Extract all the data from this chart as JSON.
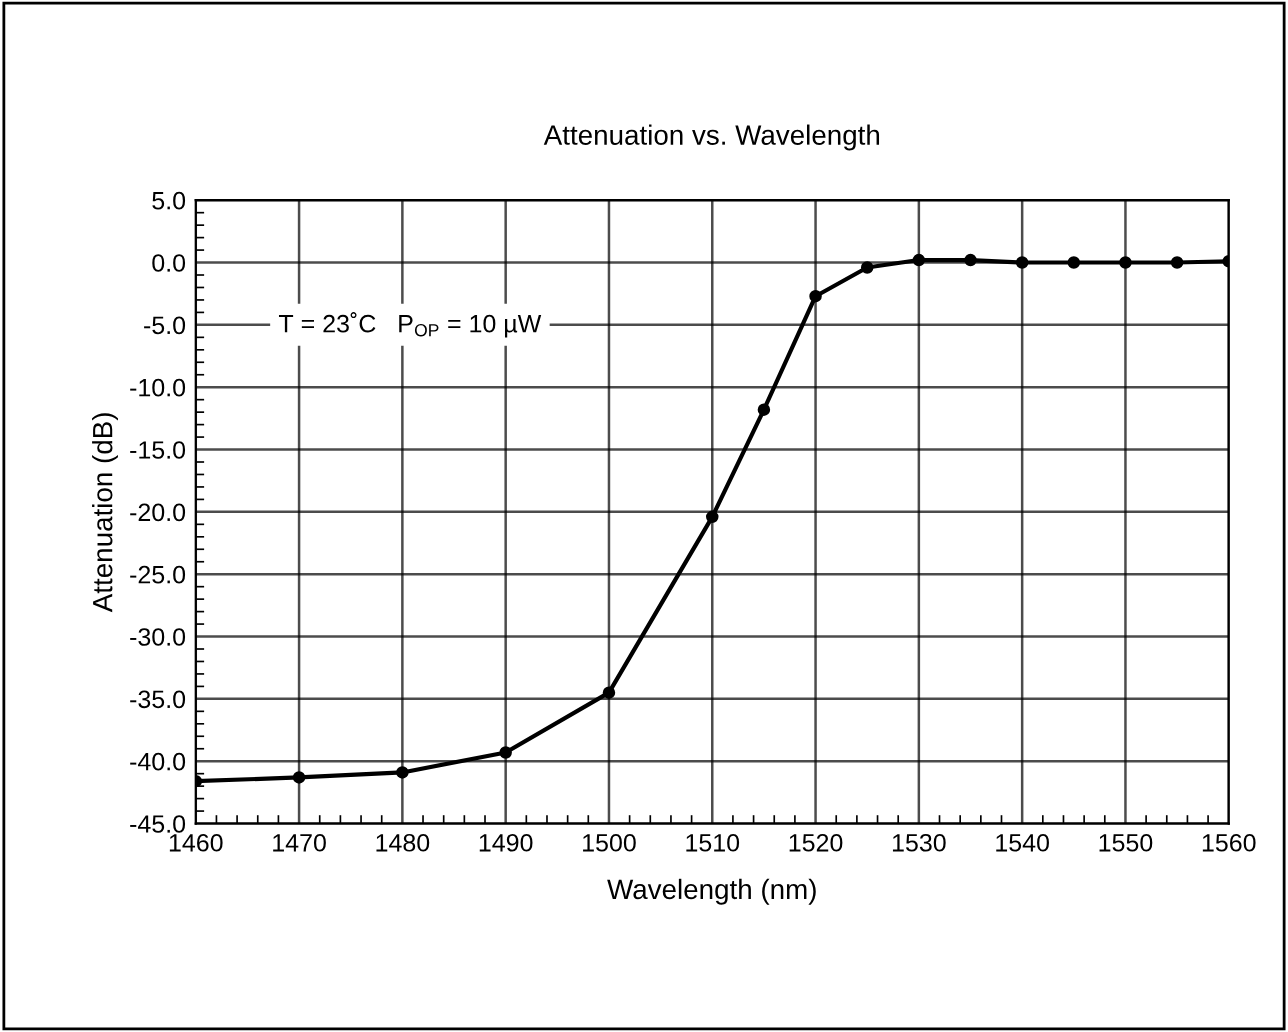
{
  "chart_data": {
    "type": "line",
    "title": "Attenuation vs. Wavelength",
    "xlabel": "Wavelength (nm)",
    "ylabel": "Attenuation (dB)",
    "x": [
      1460,
      1470,
      1480,
      1490,
      1500,
      1510,
      1515,
      1520,
      1525,
      1530,
      1535,
      1540,
      1545,
      1550,
      1555,
      1560
    ],
    "series": [
      {
        "color": "#000000",
        "values": [
          -41.6,
          -41.3,
          -40.9,
          -39.3,
          -34.5,
          -20.4,
          -11.8,
          -2.7,
          -0.4,
          0.2,
          0.2,
          0.0,
          0.0,
          0.0,
          0.0,
          0.1
        ]
      }
    ],
    "xlim": [
      1460,
      1560
    ],
    "xticks": [
      1460,
      1470,
      1480,
      1490,
      1500,
      1510,
      1520,
      1530,
      1540,
      1550,
      1560
    ],
    "ylim": [
      -45,
      5
    ],
    "yticks": [
      {
        "value": -45,
        "label": "-45.0"
      },
      {
        "value": -40,
        "label": "-40.0"
      },
      {
        "value": -35,
        "label": "-35.0"
      },
      {
        "value": -30,
        "label": "-30.0"
      },
      {
        "value": -25,
        "label": "-25.0"
      },
      {
        "value": -20,
        "label": "-20.0"
      },
      {
        "value": -15,
        "label": "-15.0"
      },
      {
        "value": -10,
        "label": "-10.0"
      },
      {
        "value": -5,
        "label": "-5.0"
      },
      {
        "value": 0,
        "label": "0.0"
      },
      {
        "value": 5,
        "label": "5.0"
      }
    ],
    "annotations": [
      "T = 23˚C   P$_{OP}$ = 10 µW"
    ],
    "grid": true,
    "marker": "circle",
    "line_style": "solid"
  }
}
